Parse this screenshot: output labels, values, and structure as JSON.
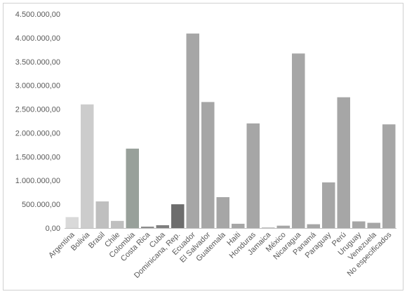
{
  "chart_data": {
    "type": "bar",
    "title": "",
    "xlabel": "",
    "ylabel": "",
    "ylim": [
      0,
      4500000
    ],
    "y_ticks": [
      "0,00",
      "500.000,00",
      "1.000.000,00",
      "1.500.000,00",
      "2.000.000,00",
      "2.500.000,00",
      "3.000.000,00",
      "3.500.000,00",
      "4.000.000,00",
      "4.500.000,00"
    ],
    "grid": false,
    "legend": "none",
    "categories": [
      "Argentina",
      "Bolivia",
      "Brasil",
      "Chile",
      "Colombia",
      "Costa Rica",
      "Cuba",
      "Dominicana, Rep.",
      "Ecuador",
      "El Salvador",
      "Guatemala",
      "Haiti",
      "Honduras",
      "Jamaica",
      "México",
      "Nicaragua",
      "Panamá",
      "Paraguay",
      "Perú",
      "Uruguay",
      "Venezuela",
      "No especificados"
    ],
    "values": [
      230000,
      2600000,
      560000,
      150000,
      1670000,
      30000,
      60000,
      500000,
      4090000,
      2650000,
      650000,
      90000,
      2200000,
      10000,
      50000,
      3670000,
      80000,
      960000,
      2750000,
      140000,
      110000,
      2180000
    ],
    "colors": [
      "#d9d9d9",
      "#cccccc",
      "#bfbfbf",
      "#bfbfbf",
      "#98a09a",
      "#8c8c8c",
      "#7f7f7f",
      "#6d6d6d",
      "#a6a6a6",
      "#a6a6a6",
      "#a6a6a6",
      "#a6a6a6",
      "#a6a6a6",
      "#a6a6a6",
      "#a6a6a6",
      "#a6a6a6",
      "#a6a6a6",
      "#a6a6a6",
      "#a6a6a6",
      "#a6a6a6",
      "#a6a6a6",
      "#a6a6a6"
    ]
  }
}
